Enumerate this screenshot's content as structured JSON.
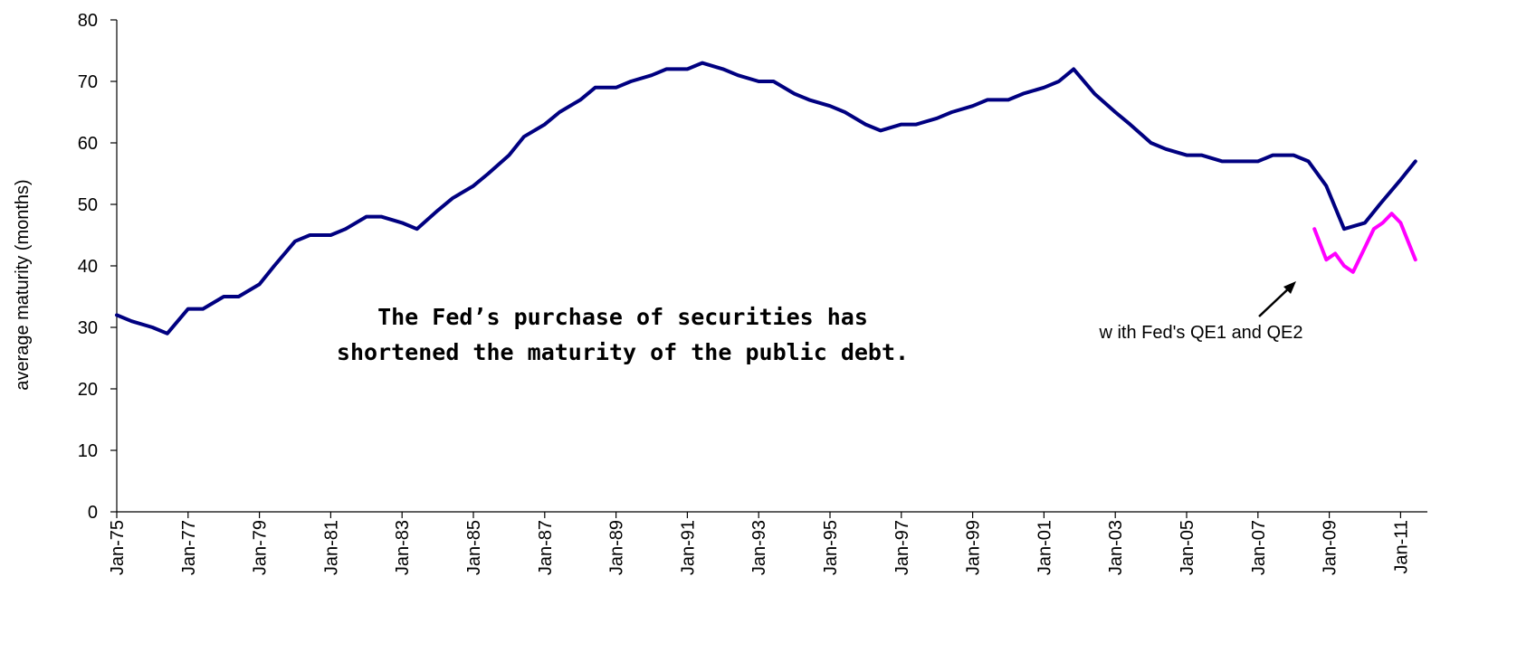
{
  "chart_data": {
    "type": "line",
    "xlabel": "",
    "ylabel": "average maturity (months)",
    "ylim": [
      0,
      80
    ],
    "yticks": [
      0,
      10,
      20,
      30,
      40,
      50,
      60,
      70,
      80
    ],
    "xlim": [
      "1975-01",
      "2011-06"
    ],
    "xtick_labels": [
      "Jan-75",
      "Jan-77",
      "Jan-79",
      "Jan-81",
      "Jan-83",
      "Jan-85",
      "Jan-87",
      "Jan-89",
      "Jan-91",
      "Jan-93",
      "Jan-95",
      "Jan-97",
      "Jan-99",
      "Jan-01",
      "Jan-03",
      "Jan-05",
      "Jan-07",
      "Jan-09",
      "Jan-11"
    ],
    "grid": false,
    "legend": "none",
    "series": [
      {
        "color": "#000080",
        "x": [
          "1975-01",
          "1975-06",
          "1976-01",
          "1976-06",
          "1977-01",
          "1977-06",
          "1978-01",
          "1978-06",
          "1979-01",
          "1979-06",
          "1980-01",
          "1980-06",
          "1981-01",
          "1981-06",
          "1982-01",
          "1982-06",
          "1983-01",
          "1983-06",
          "1984-01",
          "1984-06",
          "1985-01",
          "1985-06",
          "1986-01",
          "1986-06",
          "1987-01",
          "1987-06",
          "1988-01",
          "1988-06",
          "1989-01",
          "1989-06",
          "1990-01",
          "1990-06",
          "1991-01",
          "1991-06",
          "1992-01",
          "1992-06",
          "1993-01",
          "1993-06",
          "1994-01",
          "1994-06",
          "1995-01",
          "1995-06",
          "1996-01",
          "1996-06",
          "1997-01",
          "1997-06",
          "1998-01",
          "1998-06",
          "1999-01",
          "1999-06",
          "2000-01",
          "2000-06",
          "2001-01",
          "2001-06",
          "2001-11",
          "2002-06",
          "2003-01",
          "2003-06",
          "2004-01",
          "2004-06",
          "2005-01",
          "2005-06",
          "2006-01",
          "2006-06",
          "2007-01",
          "2007-06",
          "2008-01",
          "2008-06",
          "2008-12",
          "2009-06",
          "2010-01",
          "2010-06",
          "2011-01",
          "2011-06"
        ],
        "values": [
          32,
          31,
          30,
          29,
          33,
          33,
          35,
          35,
          37,
          40,
          44,
          45,
          45,
          46,
          48,
          48,
          47,
          46,
          49,
          51,
          53,
          55,
          58,
          61,
          63,
          65,
          67,
          69,
          69,
          70,
          71,
          72,
          72,
          73,
          72,
          71,
          70,
          70,
          68,
          67,
          66,
          65,
          63,
          62,
          63,
          63,
          64,
          65,
          66,
          67,
          67,
          68,
          69,
          70,
          72,
          68,
          65,
          63,
          60,
          59,
          58,
          58,
          57,
          57,
          57,
          58,
          58,
          57,
          53,
          46,
          47,
          50,
          54,
          57
        ]
      },
      {
        "color": "#FF00FF",
        "x": [
          "2008-08",
          "2008-12",
          "2009-03",
          "2009-06",
          "2009-09",
          "2010-01",
          "2010-04",
          "2010-07",
          "2010-10",
          "2011-01",
          "2011-06"
        ],
        "values": [
          46,
          41,
          42,
          40,
          39,
          43,
          46,
          47,
          48.5,
          47,
          41
        ]
      }
    ],
    "annotations": [
      {
        "lines": [
          "The Fed’s purchase of securities has",
          "shortened the maturity of the public debt."
        ]
      },
      {
        "text": "w ith Fed's QE1 and QE2"
      }
    ]
  }
}
